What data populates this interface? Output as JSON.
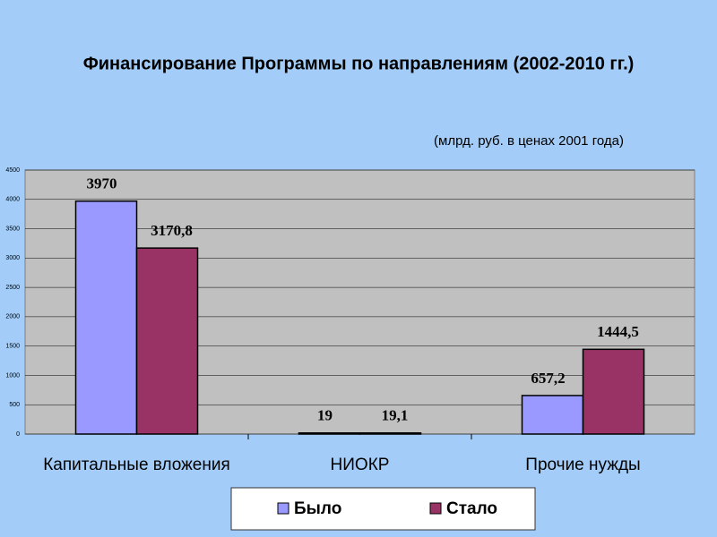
{
  "chart_data": {
    "type": "bar",
    "title": "Финансирование Программы  по направлениям (2002-2010 гг.)",
    "subtitle": "(млрд. руб. в ценах 2001 года)",
    "categories": [
      "Капитальные вложения",
      "НИОКР",
      "Прочие нужды"
    ],
    "series": [
      {
        "name": "Было",
        "color": "#9999ff",
        "values": [
          3970,
          19,
          657.2
        ],
        "value_labels": [
          "3970",
          "19",
          "657,2"
        ]
      },
      {
        "name": "Стало",
        "color": "#993366",
        "values": [
          3170.8,
          19.1,
          1444.5
        ],
        "value_labels": [
          "3170,8",
          "19,1",
          "1444,5"
        ]
      }
    ],
    "ylim": [
      0,
      4500
    ],
    "yticks": [
      0,
      500,
      1000,
      1500,
      2000,
      2500,
      3000,
      3500,
      4000,
      4500
    ],
    "grid": true,
    "legend": "bottom"
  }
}
